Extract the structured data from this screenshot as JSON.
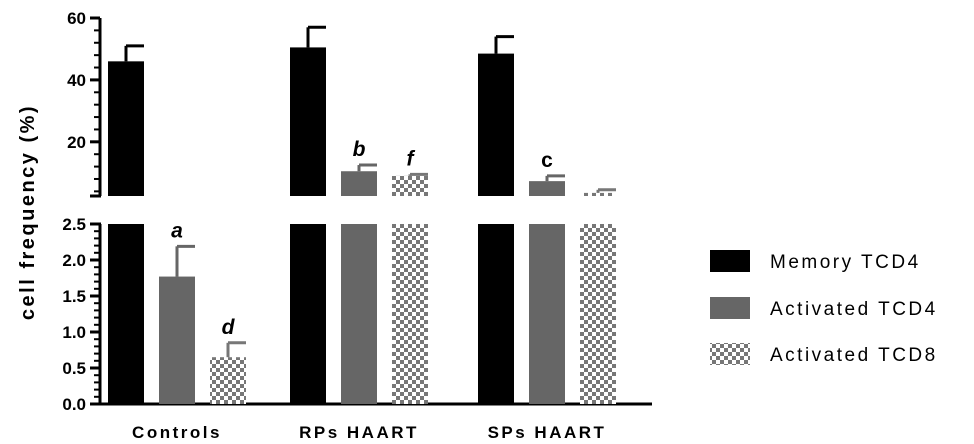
{
  "chart_data": {
    "type": "bar",
    "ylabel": "cell frequency (%)",
    "categories": [
      "Controls",
      "RPs HAART",
      "SPs HAART"
    ],
    "y_axis_break": {
      "lower_range": [
        0,
        2.5
      ],
      "upper_range": [
        2.5,
        60
      ]
    },
    "lower_ticks": [
      "0.0",
      "0.5",
      "1.0",
      "1.5",
      "2.0",
      "2.5"
    ],
    "upper_ticks": [
      "20",
      "40",
      "60"
    ],
    "series": [
      {
        "name": "Memory TCD4",
        "color": "#000000",
        "pattern": "solid",
        "values": [
          46,
          50.5,
          48.5
        ],
        "error": [
          5,
          6.5,
          5.5
        ],
        "annotations": [
          "",
          "",
          ""
        ]
      },
      {
        "name": "Activated TCD4",
        "color": "#666666",
        "pattern": "solid",
        "values": [
          1.77,
          10.5,
          7.3
        ],
        "error": [
          0.42,
          2,
          1.7
        ],
        "annotations": [
          "a",
          "b",
          "c"
        ]
      },
      {
        "name": "Activated TCD8",
        "color": "#777777",
        "pattern": "checkerboard",
        "values": [
          0.65,
          9,
          3.5
        ],
        "error": [
          0.2,
          0.5,
          1
        ],
        "annotations": [
          "d",
          "f",
          ""
        ]
      }
    ],
    "legend_position": "right"
  }
}
